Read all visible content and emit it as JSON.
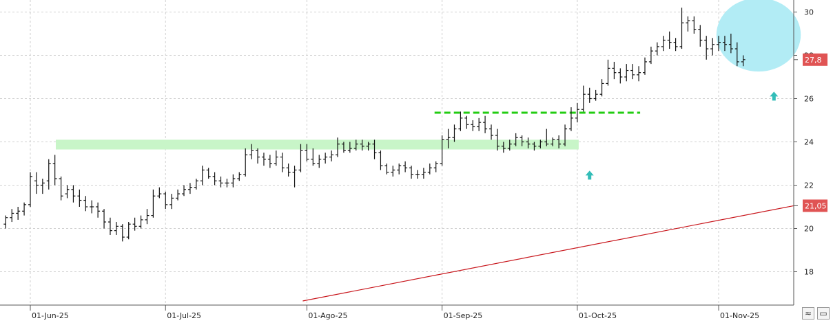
{
  "chart_data": {
    "type": "ohlc",
    "title": "",
    "xlabel": "",
    "ylabel": "",
    "ylim": [
      16.5,
      30.5
    ],
    "y_ticks": [
      18,
      20,
      22,
      24,
      26,
      28,
      30
    ],
    "x_ticks": [
      {
        "label": "01-Jun-25",
        "index": 0
      },
      {
        "label": "01-Jul-25",
        "index": 22
      },
      {
        "label": "01-Ago-25",
        "index": 45
      },
      {
        "label": "01-Sep-25",
        "index": 67
      },
      {
        "label": "01-Oct-25",
        "index": 89
      },
      {
        "label": "01-Nov-25",
        "index": 112
      }
    ],
    "grid": true,
    "first_bar_index": -5,
    "candles": [
      [
        20.4,
        20.7,
        19.9,
        20.2
      ],
      [
        20.2,
        20.6,
        20.0,
        20.5
      ],
      [
        20.5,
        20.9,
        20.3,
        20.7
      ],
      [
        20.7,
        21.0,
        20.4,
        20.8
      ],
      [
        20.8,
        21.2,
        20.6,
        21.1
      ],
      [
        21.1,
        22.6,
        21.0,
        22.4
      ],
      [
        22.2,
        22.6,
        21.6,
        22.0
      ],
      [
        22.0,
        22.3,
        21.6,
        22.1
      ],
      [
        22.2,
        23.2,
        21.8,
        23.0
      ],
      [
        23.0,
        23.4,
        22.0,
        22.3
      ],
      [
        22.3,
        22.4,
        21.3,
        21.5
      ],
      [
        21.6,
        22.0,
        21.4,
        21.8
      ],
      [
        21.8,
        22.0,
        21.2,
        21.5
      ],
      [
        21.5,
        21.8,
        21.0,
        21.3
      ],
      [
        21.3,
        21.5,
        20.8,
        21.0
      ],
      [
        21.0,
        21.3,
        20.7,
        21.0
      ],
      [
        21.0,
        21.2,
        20.5,
        20.8
      ],
      [
        20.8,
        20.9,
        20.0,
        20.3
      ],
      [
        20.3,
        20.5,
        19.7,
        19.9
      ],
      [
        19.9,
        20.3,
        19.7,
        20.1
      ],
      [
        20.1,
        20.2,
        19.4,
        19.6
      ],
      [
        19.6,
        20.3,
        19.5,
        20.2
      ],
      [
        20.2,
        20.5,
        19.9,
        20.1
      ],
      [
        20.1,
        20.6,
        20.0,
        20.4
      ],
      [
        20.4,
        20.9,
        20.2,
        20.6
      ],
      [
        20.6,
        21.8,
        20.5,
        21.5
      ],
      [
        21.5,
        21.9,
        21.4,
        21.6
      ],
      [
        21.6,
        21.7,
        20.9,
        21.1
      ],
      [
        21.1,
        21.6,
        20.9,
        21.4
      ],
      [
        21.4,
        21.8,
        21.3,
        21.6
      ],
      [
        21.6,
        22.0,
        21.5,
        21.8
      ],
      [
        21.8,
        22.1,
        21.6,
        21.9
      ],
      [
        21.9,
        22.3,
        21.8,
        22.2
      ],
      [
        22.2,
        22.9,
        22.0,
        22.7
      ],
      [
        22.7,
        22.8,
        22.3,
        22.4
      ],
      [
        22.4,
        22.6,
        22.0,
        22.2
      ],
      [
        22.2,
        22.4,
        21.9,
        22.1
      ],
      [
        22.1,
        22.3,
        21.9,
        22.1
      ],
      [
        22.1,
        22.5,
        21.9,
        22.3
      ],
      [
        22.3,
        22.6,
        22.2,
        22.5
      ],
      [
        22.5,
        23.7,
        22.4,
        23.4
      ],
      [
        23.4,
        23.9,
        23.2,
        23.6
      ],
      [
        23.6,
        23.7,
        23.0,
        23.3
      ],
      [
        23.3,
        23.5,
        22.9,
        23.2
      ],
      [
        23.2,
        23.4,
        22.8,
        23.0
      ],
      [
        23.0,
        23.6,
        22.9,
        23.3
      ],
      [
        23.3,
        23.5,
        22.6,
        22.8
      ],
      [
        22.8,
        23.0,
        22.4,
        22.6
      ],
      [
        22.6,
        22.9,
        21.9,
        22.7
      ],
      [
        22.7,
        23.9,
        22.6,
        23.6
      ],
      [
        23.6,
        23.9,
        23.1,
        23.2
      ],
      [
        23.2,
        23.7,
        22.9,
        23.0
      ],
      [
        23.0,
        23.4,
        22.8,
        23.2
      ],
      [
        23.2,
        23.5,
        23.0,
        23.3
      ],
      [
        23.3,
        23.6,
        23.1,
        23.4
      ],
      [
        23.4,
        24.2,
        23.3,
        23.9
      ],
      [
        23.9,
        24.0,
        23.5,
        23.6
      ],
      [
        23.6,
        24.0,
        23.5,
        23.7
      ],
      [
        23.7,
        24.1,
        23.6,
        23.9
      ],
      [
        23.9,
        24.1,
        23.6,
        23.8
      ],
      [
        23.8,
        24.0,
        23.6,
        23.9
      ],
      [
        23.9,
        24.1,
        23.2,
        23.5
      ],
      [
        23.5,
        23.6,
        22.7,
        22.9
      ],
      [
        22.9,
        23.0,
        22.5,
        22.6
      ],
      [
        22.6,
        22.9,
        22.4,
        22.7
      ],
      [
        22.7,
        23.0,
        22.5,
        22.9
      ],
      [
        22.9,
        23.1,
        22.6,
        22.8
      ],
      [
        22.8,
        22.9,
        22.3,
        22.5
      ],
      [
        22.5,
        22.7,
        22.3,
        22.5
      ],
      [
        22.5,
        22.8,
        22.3,
        22.6
      ],
      [
        22.6,
        23.0,
        22.5,
        22.8
      ],
      [
        22.8,
        23.1,
        22.6,
        23.0
      ],
      [
        23.0,
        24.3,
        22.9,
        24.1
      ],
      [
        24.1,
        24.6,
        23.7,
        24.2
      ],
      [
        24.2,
        24.8,
        24.0,
        24.6
      ],
      [
        24.6,
        25.4,
        24.5,
        25.1
      ],
      [
        25.1,
        25.2,
        24.6,
        24.8
      ],
      [
        24.8,
        25.0,
        24.5,
        24.7
      ],
      [
        24.7,
        25.1,
        24.5,
        24.9
      ],
      [
        24.9,
        25.2,
        24.4,
        24.6
      ],
      [
        24.6,
        24.8,
        24.1,
        24.3
      ],
      [
        24.3,
        24.6,
        23.6,
        23.8
      ],
      [
        23.8,
        24.0,
        23.5,
        23.7
      ],
      [
        23.7,
        24.1,
        23.6,
        23.9
      ],
      [
        23.9,
        24.4,
        23.8,
        24.2
      ],
      [
        24.2,
        24.3,
        23.8,
        24.0
      ],
      [
        24.0,
        24.2,
        23.7,
        23.9
      ],
      [
        23.9,
        24.0,
        23.6,
        23.8
      ],
      [
        23.8,
        24.1,
        23.7,
        24.0
      ],
      [
        24.0,
        24.6,
        23.8,
        23.9
      ],
      [
        23.9,
        24.2,
        23.8,
        24.1
      ],
      [
        24.1,
        24.3,
        23.7,
        23.9
      ],
      [
        23.9,
        24.8,
        23.8,
        24.6
      ],
      [
        24.6,
        25.6,
        24.5,
        25.1
      ],
      [
        25.1,
        25.8,
        24.9,
        25.5
      ],
      [
        25.5,
        26.6,
        25.4,
        26.2
      ],
      [
        26.2,
        26.5,
        25.8,
        26.0
      ],
      [
        26.0,
        26.4,
        25.9,
        26.2
      ],
      [
        26.2,
        26.9,
        26.1,
        26.7
      ],
      [
        26.7,
        27.8,
        26.6,
        27.4
      ],
      [
        27.4,
        27.7,
        26.9,
        27.2
      ],
      [
        27.2,
        27.4,
        26.7,
        27.0
      ],
      [
        27.0,
        27.6,
        26.8,
        27.3
      ],
      [
        27.3,
        27.6,
        26.9,
        27.1
      ],
      [
        27.1,
        27.5,
        26.8,
        27.2
      ],
      [
        27.2,
        27.9,
        27.1,
        27.7
      ],
      [
        27.7,
        28.4,
        27.6,
        28.2
      ],
      [
        28.2,
        28.6,
        28.0,
        28.4
      ],
      [
        28.4,
        28.9,
        28.2,
        28.7
      ],
      [
        28.7,
        29.1,
        28.3,
        28.6
      ],
      [
        28.6,
        28.8,
        28.2,
        28.4
      ],
      [
        28.4,
        30.2,
        28.3,
        29.5
      ],
      [
        29.5,
        29.8,
        29.1,
        29.6
      ],
      [
        29.6,
        29.8,
        29.0,
        29.2
      ],
      [
        29.2,
        29.4,
        28.4,
        28.7
      ],
      [
        28.7,
        28.9,
        27.8,
        28.3
      ],
      [
        28.3,
        28.8,
        28.0,
        28.5
      ],
      [
        28.5,
        28.9,
        28.2,
        28.6
      ],
      [
        28.6,
        28.9,
        28.2,
        28.5
      ],
      [
        28.5,
        29.0,
        28.1,
        28.3
      ],
      [
        28.3,
        28.6,
        27.5,
        27.7
      ],
      [
        27.7,
        28.0,
        27.5,
        27.8
      ]
    ],
    "moving_average": {
      "start_index": 45,
      "start_value": 16.65,
      "end_index": 124,
      "end_value": 21.05,
      "color": "#c8151b"
    },
    "support_zone": {
      "from_index": -5,
      "to_index": 89,
      "low": 23.65,
      "high": 24.1,
      "color": "#c8f5c8"
    },
    "resistance_line": {
      "from_index": 66,
      "to_index": 99,
      "value": 25.35,
      "color": "#22cc11"
    },
    "arrows": [
      {
        "index": 91,
        "value": 22.45,
        "color": "#33bdb8"
      },
      {
        "index": 121,
        "value": 26.1,
        "color": "#33bdb8"
      }
    ],
    "highlight_ellipse": {
      "center_index": 118.5,
      "center_value": 28.95,
      "radius_x_bars": 14,
      "radius_y_value": 1.7,
      "color": "#b2ecf5"
    },
    "price_labels": [
      {
        "text": "27,8",
        "value": 27.8,
        "color": "#e05454"
      },
      {
        "text": "21,05",
        "value": 21.05,
        "color": "#e05454"
      }
    ]
  },
  "controls": {
    "button1": "≈",
    "button2": "▭"
  }
}
